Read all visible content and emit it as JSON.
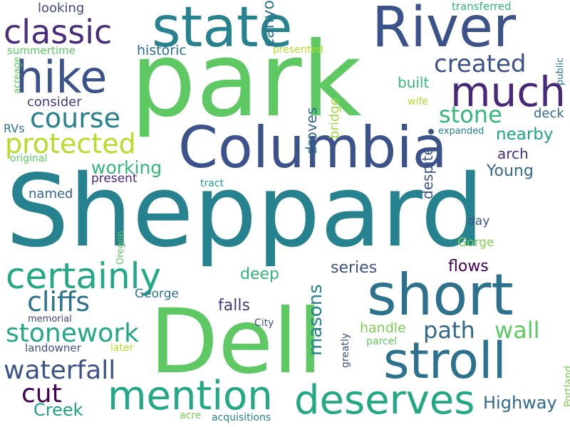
{
  "words": [
    {
      "text": "Sheppard",
      "color": "#26828e"
    },
    {
      "text": "park",
      "color": "#5ec962"
    },
    {
      "text": "Dell",
      "color": "#5ec962"
    },
    {
      "text": "River",
      "color": "#3b528b"
    },
    {
      "text": "Columbia",
      "color": "#3b528b"
    },
    {
      "text": "state",
      "color": "#26828e"
    },
    {
      "text": "short",
      "color": "#2c728e"
    },
    {
      "text": "stroll",
      "color": "#2c728e"
    },
    {
      "text": "deserves",
      "color": "#22a884"
    },
    {
      "text": "mention",
      "color": "#22a884"
    },
    {
      "text": "much",
      "color": "#482878"
    },
    {
      "text": "hike",
      "color": "#3b528b"
    },
    {
      "text": "classic",
      "color": "#472d7b"
    },
    {
      "text": "certainly",
      "color": "#22a884"
    },
    {
      "text": "protected",
      "color": "#b5de2b"
    },
    {
      "text": "course",
      "color": "#26828e"
    },
    {
      "text": "stonework",
      "color": "#22a884"
    },
    {
      "text": "waterfall",
      "color": "#3b528b"
    },
    {
      "text": "cliffs",
      "color": "#2c728e"
    },
    {
      "text": "created",
      "color": "#3b528b"
    },
    {
      "text": "path",
      "color": "#31688e"
    },
    {
      "text": "cut",
      "color": "#440154"
    },
    {
      "text": "stone",
      "color": "#35b779"
    },
    {
      "text": "wall",
      "color": "#5ec962"
    },
    {
      "text": "Creek",
      "color": "#1fa187"
    },
    {
      "text": "Highway",
      "color": "#31688e"
    },
    {
      "text": "working",
      "color": "#35b779"
    },
    {
      "text": "masons",
      "color": "#26828e"
    },
    {
      "text": "canyon",
      "color": "#2c728e"
    },
    {
      "text": "nearby",
      "color": "#1fa187"
    },
    {
      "text": "Young",
      "color": "#31688e"
    },
    {
      "text": "series",
      "color": "#3b528b"
    },
    {
      "text": "deep",
      "color": "#35b779"
    },
    {
      "text": "flows",
      "color": "#440154"
    },
    {
      "text": "falls",
      "color": "#443983"
    },
    {
      "text": "built",
      "color": "#35b779"
    },
    {
      "text": "droves",
      "color": "#31688e"
    },
    {
      "text": "arch",
      "color": "#46327e"
    },
    {
      "text": "historic",
      "color": "#2c728e"
    },
    {
      "text": "handle",
      "color": "#7ad151"
    },
    {
      "text": "despite",
      "color": "#3b528b"
    },
    {
      "text": "bridge",
      "color": "#a0da39"
    },
    {
      "text": "deck",
      "color": "#31688e"
    },
    {
      "text": "consider",
      "color": "#443983"
    },
    {
      "text": "looking",
      "color": "#3e4989"
    },
    {
      "text": "named",
      "color": "#31688e"
    },
    {
      "text": "present",
      "color": "#482878"
    },
    {
      "text": "George",
      "color": "#2c728e"
    },
    {
      "text": "day",
      "color": "#3b528b"
    },
    {
      "text": "Gorge",
      "color": "#7ad151"
    },
    {
      "text": "summertime",
      "color": "#5ec962"
    },
    {
      "text": "RVs",
      "color": "#2c728e"
    },
    {
      "text": "landowner",
      "color": "#3b528b"
    },
    {
      "text": "transferred",
      "color": "#35b779"
    },
    {
      "text": "presented",
      "color": "#b5de2b"
    },
    {
      "text": "wife",
      "color": "#b5de2b"
    },
    {
      "text": "expanded",
      "color": "#26828e"
    },
    {
      "text": "original",
      "color": "#5ec962"
    },
    {
      "text": "tract",
      "color": "#20a486"
    },
    {
      "text": "Oregon",
      "color": "#5ec962"
    },
    {
      "text": "memorial",
      "color": "#414487"
    },
    {
      "text": "City",
      "color": "#3b528b"
    },
    {
      "text": "greatly",
      "color": "#3b528b"
    },
    {
      "text": "later",
      "color": "#b5de2b"
    },
    {
      "text": "parcel",
      "color": "#5ec962"
    },
    {
      "text": "Portland",
      "color": "#7ad151"
    },
    {
      "text": "public",
      "color": "#2c728e"
    },
    {
      "text": "acreage",
      "color": "#5ec962"
    },
    {
      "text": "acre",
      "color": "#7ad151"
    },
    {
      "text": "acquisitions",
      "color": "#26828e"
    }
  ],
  "accent_colors": {
    "dot": "#3b528b"
  }
}
